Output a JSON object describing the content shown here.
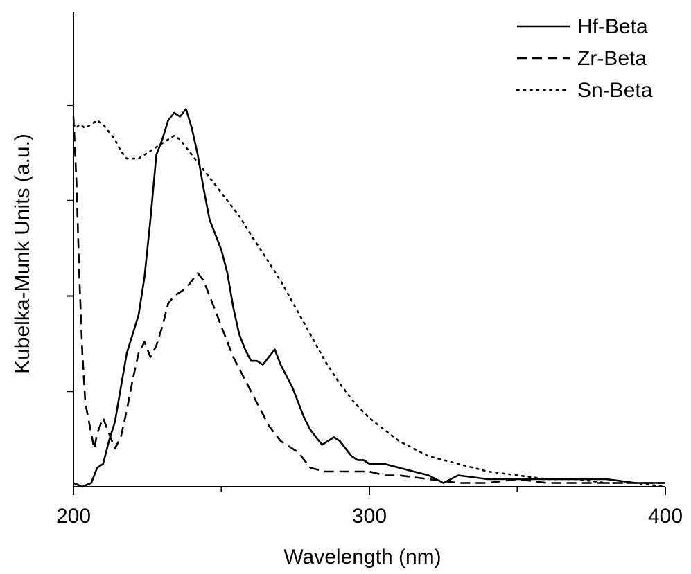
{
  "chart_data": {
    "type": "line",
    "title": "",
    "xlabel": "Wavelength (nm)",
    "ylabel": "Kubelka-Munk Units (a.u.)",
    "xlim": [
      200,
      400
    ],
    "ylim": [
      0,
      1.0
    ],
    "x_ticks": [
      200,
      300,
      400
    ],
    "x_tick_labels": [
      "200",
      "300",
      "400"
    ],
    "x_minor_ticks": [
      250,
      350
    ],
    "y_ticks": [
      0.25,
      0.5,
      0.75,
      1.0
    ],
    "y_tick_labels_visible": false,
    "grid": false,
    "legend_position": "top-right",
    "series": [
      {
        "name": "Hf-Beta",
        "style": "solid",
        "color": "#000000",
        "x": [
          200,
          203,
          206,
          208,
          210,
          212,
          214,
          216,
          218,
          220,
          222,
          224,
          226,
          228,
          230,
          232,
          234,
          236,
          238,
          240,
          242,
          244,
          246,
          248,
          250,
          252,
          254,
          256,
          258,
          260,
          262,
          264,
          266,
          268,
          270,
          272,
          274,
          276,
          278,
          280,
          282,
          284,
          286,
          288,
          290,
          292,
          294,
          296,
          298,
          300,
          305,
          310,
          315,
          320,
          325,
          330,
          340,
          350,
          360,
          370,
          380,
          390,
          400
        ],
        "y": [
          0.01,
          0.0,
          0.01,
          0.05,
          0.06,
          0.12,
          0.17,
          0.26,
          0.35,
          0.4,
          0.45,
          0.55,
          0.7,
          0.87,
          0.91,
          0.96,
          0.98,
          0.97,
          0.99,
          0.94,
          0.87,
          0.78,
          0.7,
          0.66,
          0.62,
          0.56,
          0.47,
          0.4,
          0.36,
          0.33,
          0.33,
          0.32,
          0.34,
          0.36,
          0.32,
          0.29,
          0.26,
          0.22,
          0.18,
          0.15,
          0.13,
          0.11,
          0.12,
          0.13,
          0.12,
          0.1,
          0.08,
          0.07,
          0.07,
          0.06,
          0.06,
          0.05,
          0.04,
          0.03,
          0.01,
          0.03,
          0.02,
          0.02,
          0.02,
          0.02,
          0.02,
          0.01,
          0.01
        ]
      },
      {
        "name": "Zr-Beta",
        "style": "dashed",
        "color": "#000000",
        "x": [
          200,
          201,
          202,
          203,
          204,
          205,
          206,
          207,
          208,
          210,
          212,
          214,
          216,
          218,
          220,
          222,
          224,
          226,
          228,
          230,
          232,
          234,
          236,
          238,
          240,
          242,
          244,
          246,
          248,
          250,
          252,
          254,
          256,
          258,
          260,
          262,
          264,
          266,
          268,
          270,
          272,
          274,
          276,
          278,
          280,
          285,
          290,
          295,
          300,
          305,
          310,
          320,
          330,
          340,
          350,
          360,
          370,
          380,
          390,
          400
        ],
        "y": [
          0.97,
          0.8,
          0.55,
          0.35,
          0.22,
          0.18,
          0.14,
          0.1,
          0.14,
          0.18,
          0.14,
          0.1,
          0.13,
          0.2,
          0.28,
          0.35,
          0.38,
          0.34,
          0.37,
          0.42,
          0.48,
          0.5,
          0.51,
          0.52,
          0.54,
          0.56,
          0.54,
          0.5,
          0.46,
          0.42,
          0.38,
          0.34,
          0.31,
          0.28,
          0.25,
          0.22,
          0.19,
          0.16,
          0.14,
          0.12,
          0.11,
          0.1,
          0.09,
          0.07,
          0.05,
          0.04,
          0.04,
          0.04,
          0.04,
          0.03,
          0.03,
          0.02,
          0.01,
          0.01,
          0.02,
          0.01,
          0.01,
          0.01,
          0.01,
          0.01
        ]
      },
      {
        "name": "Sn-Beta",
        "style": "dotted",
        "color": "#000000",
        "x": [
          200,
          201,
          202,
          204,
          206,
          208,
          210,
          212,
          214,
          216,
          218,
          220,
          222,
          224,
          226,
          228,
          230,
          232,
          234,
          236,
          238,
          240,
          244,
          248,
          252,
          256,
          260,
          265,
          270,
          275,
          280,
          285,
          290,
          295,
          300,
          305,
          310,
          315,
          320,
          325,
          330,
          340,
          350,
          360,
          370,
          380,
          390,
          400
        ],
        "y": [
          0.95,
          0.94,
          0.95,
          0.94,
          0.95,
          0.96,
          0.95,
          0.93,
          0.91,
          0.88,
          0.86,
          0.86,
          0.86,
          0.87,
          0.88,
          0.89,
          0.9,
          0.91,
          0.92,
          0.91,
          0.89,
          0.87,
          0.83,
          0.79,
          0.75,
          0.71,
          0.66,
          0.6,
          0.54,
          0.47,
          0.4,
          0.33,
          0.27,
          0.22,
          0.18,
          0.15,
          0.12,
          0.1,
          0.08,
          0.07,
          0.06,
          0.04,
          0.03,
          0.02,
          0.02,
          0.01,
          0.01,
          0.0
        ]
      }
    ]
  }
}
